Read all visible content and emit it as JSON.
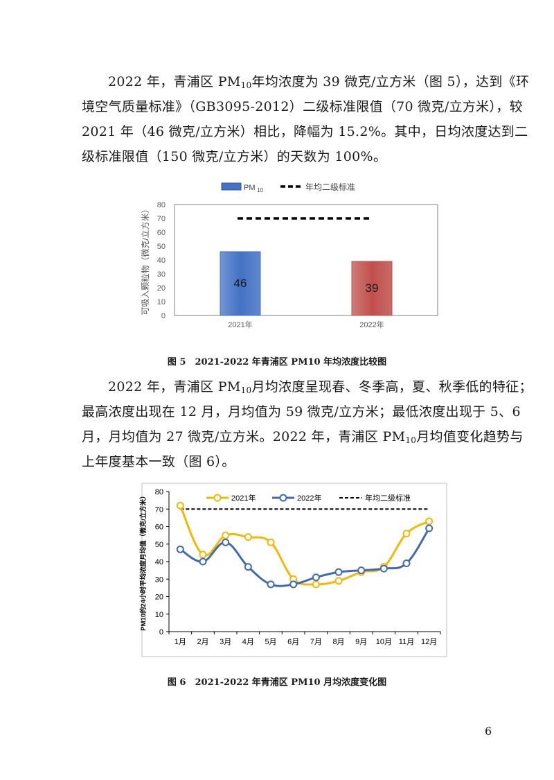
{
  "paragraph1": {
    "lines": [
      [
        "2022 年，青浦区 PM",
        "10",
        "年均浓度为 39 微克/立方米（图 5），达到《环"
      ],
      [
        "境空气质量标准》（GB3095-2012）二级标准限值（70 微克/立方米），较"
      ],
      [
        "2021 年（46 微克/立方米）相比，降幅为 15.2%。其中，日均浓度达到二"
      ],
      [
        "级标准限值（150 微克/立方米）的天数为 100%。"
      ]
    ]
  },
  "paragraph2": {
    "lines": [
      [
        "2022 年，青浦区 PM",
        "10",
        "月均浓度呈现春、冬季高，夏、秋季低的特征；"
      ],
      [
        "最高浓度出现在 12 月，月均值为 59 微克/立方米；最低浓度出现于 5、6"
      ],
      [
        "月，月均值为 27 微克/立方米。2022 年，青浦区 PM",
        "10",
        "月均值变化趋势与"
      ],
      [
        "上年度基本一致（图 6）。"
      ]
    ]
  },
  "figure5_caption": "图 5　2021-2022 年青浦区 PM10 年均浓度比较图",
  "figure6_caption": "图 6　2021-2022 年青浦区 PM10 月均浓度变化图",
  "page_number": "6",
  "colors": {
    "bar_2021": "#4472C4",
    "bar_2022": "#C0504D",
    "line_2021": "#F5B800",
    "line_2022": "#3F6AB5",
    "standard": "#000000"
  },
  "chart_data": [
    {
      "type": "bar",
      "legend": {
        "bar_label": "PM",
        "bar_label_sub": "10",
        "line_label": "年均二级标准",
        "position": "top"
      },
      "ylabel": "可吸入颗粒物（微克/立方米）",
      "ylim": [
        0,
        80
      ],
      "yticks": [
        "0",
        "10",
        "20",
        "30",
        "40",
        "50",
        "60",
        "70",
        "80"
      ],
      "categories": [
        "2021年",
        "2022年"
      ],
      "values": [
        46,
        39
      ],
      "value_labels": [
        "46",
        "39"
      ],
      "standard": 70,
      "grid": false
    },
    {
      "type": "line",
      "ylabel": "PM10的24小时平均浓度月均值（微克/立方米）",
      "ylim": [
        0,
        80
      ],
      "yticks": [
        "0",
        "10",
        "20",
        "30",
        "40",
        "50",
        "60",
        "70",
        "80"
      ],
      "categories": [
        "1月",
        "2月",
        "3月",
        "4月",
        "5月",
        "6月",
        "7月",
        "8月",
        "9月",
        "10月",
        "11月",
        "12月"
      ],
      "series": [
        {
          "name": "2021年",
          "values": [
            72,
            44,
            55,
            54,
            51,
            30,
            27,
            29,
            34,
            37,
            56,
            63
          ]
        },
        {
          "name": "2022年",
          "values": [
            47,
            40,
            51,
            37,
            27,
            27,
            31,
            34,
            35,
            36,
            39,
            59
          ]
        }
      ],
      "standard": {
        "name": "年均二级标准",
        "value": 70
      },
      "legend_position": "top",
      "grid": false
    }
  ]
}
